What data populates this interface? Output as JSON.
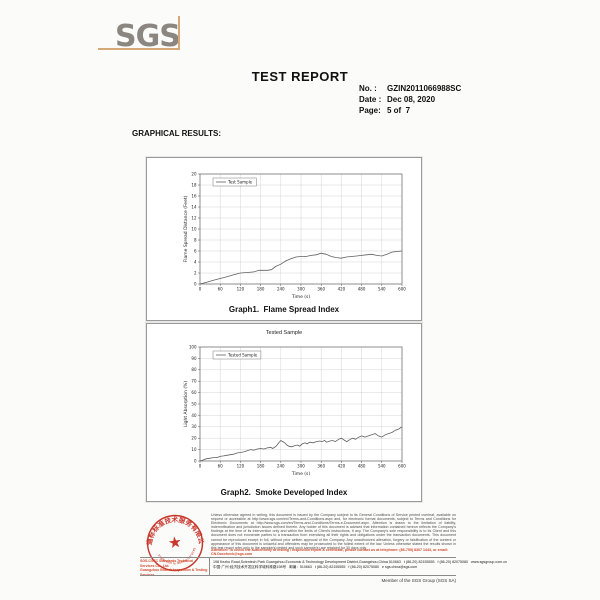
{
  "header": {
    "logo_text": "SGS",
    "title": "TEST REPORT",
    "meta": [
      {
        "label": "No.  :",
        "value": "GZIN2011066988SC"
      },
      {
        "label": "Date :",
        "value": "Dec 08, 2020"
      },
      {
        "label": "Page:",
        "value": "5 of  7"
      }
    ],
    "section_heading": "GRAPHICAL RESULTS:"
  },
  "chart_data": [
    {
      "type": "line",
      "title": "",
      "caption": "Graph1.  Flame Spread Index",
      "xlabel": "Time (s)",
      "ylabel": "Flame Spread Distance (Feet)",
      "xlim": [
        0,
        600
      ],
      "xtick_step": 60,
      "ylim": [
        0,
        20
      ],
      "ytick_step": 2,
      "grid": true,
      "legend_position": "top-left-inside",
      "line_color": "#5f5f5f",
      "grid_color": "#c9c9c9",
      "series": [
        {
          "name": "Test Sample",
          "points": [
            [
              0,
              0
            ],
            [
              20,
              0.3
            ],
            [
              40,
              0.7
            ],
            [
              60,
              1.0
            ],
            [
              80,
              1.3
            ],
            [
              100,
              1.7
            ],
            [
              120,
              2.0
            ],
            [
              140,
              2.1
            ],
            [
              160,
              2.2
            ],
            [
              175,
              2.5
            ],
            [
              200,
              2.5
            ],
            [
              212,
              2.6
            ],
            [
              225,
              3.2
            ],
            [
              240,
              3.6
            ],
            [
              255,
              4.2
            ],
            [
              270,
              4.6
            ],
            [
              285,
              4.9
            ],
            [
              300,
              5.0
            ],
            [
              315,
              5.0
            ],
            [
              330,
              5.2
            ],
            [
              345,
              5.3
            ],
            [
              360,
              5.6
            ],
            [
              375,
              5.4
            ],
            [
              390,
              5.0
            ],
            [
              405,
              4.8
            ],
            [
              420,
              4.7
            ],
            [
              435,
              4.9
            ],
            [
              450,
              5.0
            ],
            [
              465,
              5.1
            ],
            [
              480,
              5.2
            ],
            [
              495,
              5.3
            ],
            [
              510,
              5.4
            ],
            [
              525,
              5.2
            ],
            [
              540,
              5.1
            ],
            [
              555,
              5.4
            ],
            [
              570,
              5.8
            ],
            [
              585,
              5.9
            ],
            [
              600,
              6.0
            ]
          ]
        }
      ]
    },
    {
      "type": "line",
      "title": "Tested Sample",
      "caption": "Graph2.  Smoke Developed Index",
      "xlabel": "Time (s)",
      "ylabel": "Light Absorption (%)",
      "xlim": [
        0,
        600
      ],
      "xtick_step": 60,
      "ylim": [
        0,
        100
      ],
      "ytick_step": 10,
      "grid": true,
      "legend_position": "top-left-inside",
      "line_color": "#5f5f5f",
      "grid_color": "#c9c9c9",
      "series": [
        {
          "name": "Tested Sample",
          "points": [
            [
              0,
              0
            ],
            [
              10,
              1
            ],
            [
              20,
              2
            ],
            [
              30,
              2.5
            ],
            [
              40,
              3
            ],
            [
              50,
              3
            ],
            [
              60,
              4
            ],
            [
              70,
              4.5
            ],
            [
              80,
              5
            ],
            [
              90,
              5.5
            ],
            [
              100,
              6
            ],
            [
              110,
              7
            ],
            [
              120,
              7.5
            ],
            [
              130,
              8
            ],
            [
              140,
              9
            ],
            [
              150,
              10
            ],
            [
              160,
              9.5
            ],
            [
              170,
              10.5
            ],
            [
              180,
              11
            ],
            [
              190,
              10.5
            ],
            [
              200,
              11.5
            ],
            [
              210,
              12
            ],
            [
              216,
              11
            ],
            [
              226,
              13
            ],
            [
              234,
              16
            ],
            [
              240,
              18
            ],
            [
              246,
              17
            ],
            [
              252,
              16
            ],
            [
              258,
              14
            ],
            [
              264,
              13
            ],
            [
              272,
              12.5
            ],
            [
              282,
              13.5
            ],
            [
              290,
              14
            ],
            [
              296,
              13
            ],
            [
              304,
              15
            ],
            [
              312,
              16
            ],
            [
              318,
              15
            ],
            [
              326,
              16.5
            ],
            [
              336,
              16
            ],
            [
              346,
              17
            ],
            [
              356,
              17.5
            ],
            [
              362,
              17
            ],
            [
              370,
              18
            ],
            [
              376,
              16.5
            ],
            [
              386,
              17.5
            ],
            [
              394,
              18
            ],
            [
              402,
              17
            ],
            [
              412,
              19
            ],
            [
              420,
              20
            ],
            [
              430,
              18
            ],
            [
              436,
              17
            ],
            [
              446,
              19
            ],
            [
              454,
              20
            ],
            [
              462,
              19
            ],
            [
              472,
              21
            ],
            [
              480,
              22
            ],
            [
              490,
              21
            ],
            [
              500,
              22
            ],
            [
              510,
              23
            ],
            [
              520,
              24
            ],
            [
              530,
              22
            ],
            [
              540,
              21
            ],
            [
              550,
              23
            ],
            [
              560,
              24
            ],
            [
              570,
              25
            ],
            [
              580,
              27
            ],
            [
              590,
              28
            ],
            [
              600,
              30
            ]
          ]
        }
      ]
    }
  ],
  "footer": {
    "stamp": {
      "arc_top": "通标标准技术服务有限公司",
      "arc_bottom": "Inspection & Testing Services",
      "star": "★",
      "color": "#c8372c"
    },
    "legal_text": "Unless otherwise agreed in writing, this document is issued by the Company subject to its General Conditions of Service printed overleaf, available on request or accessible at http://www.sgs.com/en/Terms-and-Conditions.aspx and, for electronic format documents, subject to Terms and Conditions for Electronic Documents at http://www.sgs.com/en/Terms-and-Conditions/Terms-e-Document.aspx. Attention is drawn to the limitation of liability, indemnification and jurisdiction issues defined therein. Any holder of this document is advised that information contained hereon reflects the Company's findings at the time of its intervention only and within the limits of Client's instructions, if any. The Company's sole responsibility is to its Client and this document does not exonerate parties to a transaction from exercising all their rights and obligations under the transaction documents. This document cannot be reproduced except in full, without prior written approval of the Company. Any unauthorized alteration, forgery or falsification of the content or appearance of this document is unlawful and offenders may be prosecuted to the fullest extent of the law. Unless otherwise stated the results shown in this test report refer only to the sample(s) tested and such sample(s) are retained for 30 days only.",
    "attention_text": "Attention: To check the authenticity of testing / inspection report & certificate, please contact us at telephone: (86-755) 8307 1443, or email: CN.Doccheck@sgs.com",
    "attention_color": "#d2492a",
    "company_lines": [
      "SGS-CSTC Standards Technical Services Co., Ltd.",
      "Guangzhou Branch  Inspection & Testing Services"
    ],
    "address_en": "198 Kezhu Road,Scientech Park Guangzhou Economic & Technology Development District,Guangzhou,China 510663   t (86-20) 82155555   f (86-20) 82075080   www.sgsgroup.com.cn",
    "address_cn": "中国·广州·经济技术开发区科学城科珠路198号   邮编：510663   t (86-20) 82155555   f (86-20) 82075080   e sgs.china@sgs.com",
    "member_text": "Member of the SGS Group (SGS SA)"
  }
}
